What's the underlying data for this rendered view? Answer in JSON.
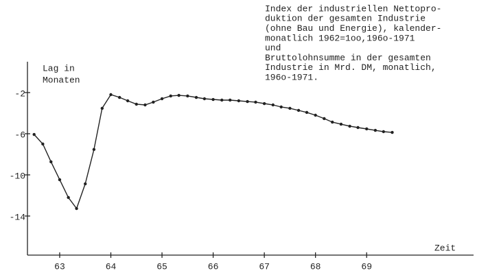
{
  "chart_data": {
    "type": "line",
    "annotation": [
      "Index der industriellen Nettopro-",
      "duktion der gesamten Industrie",
      "(ohne Bau und Energie), kalender-",
      "monatlich 1962=1oo,196o-1971",
      "und",
      "Bruttolohnsumme in der gesamten",
      "Industrie in Mrd. DM, monatlich,",
      "196o-1971."
    ],
    "y_label": [
      "Lag in",
      "Monaten"
    ],
    "x_label": "Zeit",
    "x": [
      62.5,
      62.67,
      62.83,
      63,
      63.17,
      63.33,
      63.5,
      63.67,
      63.83,
      64,
      64.17,
      64.33,
      64.5,
      64.67,
      64.83,
      65,
      65.17,
      65.33,
      65.5,
      65.67,
      65.83,
      66,
      66.17,
      66.33,
      66.5,
      66.67,
      66.83,
      67,
      67.17,
      67.33,
      67.5,
      67.67,
      67.83,
      68,
      68.17,
      68.33,
      68.5,
      68.67,
      68.83,
      69,
      69.17,
      69.33,
      69.5
    ],
    "series": [
      {
        "color": "#222222",
        "values": [
          -6.07,
          -7.0,
          -8.73,
          -10.47,
          -12.2,
          -13.27,
          -10.87,
          -7.53,
          -3.53,
          -2.2,
          -2.47,
          -2.8,
          -3.13,
          -3.2,
          -2.93,
          -2.6,
          -2.33,
          -2.27,
          -2.33,
          -2.47,
          -2.6,
          -2.67,
          -2.73,
          -2.73,
          -2.8,
          -2.87,
          -2.93,
          -3.07,
          -3.2,
          -3.4,
          -3.53,
          -3.73,
          -3.93,
          -4.2,
          -4.53,
          -4.87,
          -5.07,
          -5.27,
          -5.4,
          -5.53,
          -5.67,
          -5.8,
          -5.87
        ]
      }
    ],
    "xlim": [
      62.37,
      71.09
    ],
    "xticks": [
      63,
      64,
      65,
      66,
      67,
      68,
      69
    ],
    "ylim": [
      -17.8,
      1
    ],
    "yticks": [
      -2,
      -6,
      -10,
      -14
    ]
  }
}
